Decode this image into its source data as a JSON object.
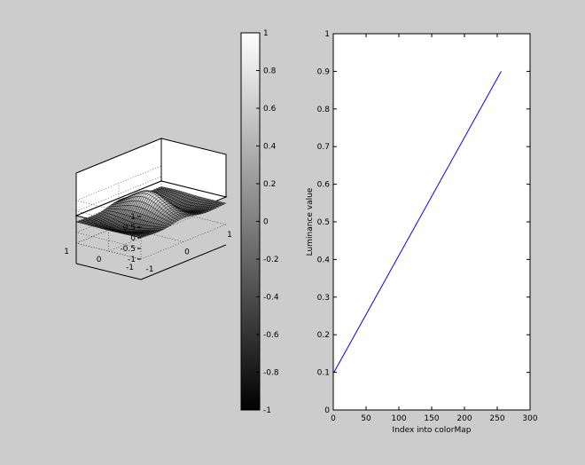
{
  "chart_data": [
    {
      "type": "surface",
      "colormap": "gray",
      "z_ticks": [
        "1",
        "0.5",
        "0",
        "-0.5",
        "-1"
      ],
      "y_ticks": [
        "1",
        "0",
        "-1"
      ],
      "x_ticks": [
        "-1",
        "0",
        "1"
      ],
      "xlim": [
        -1,
        1
      ],
      "ylim": [
        -1,
        1
      ],
      "zlim": [
        -1,
        1
      ],
      "grid": true,
      "colors": {
        "axes_bg": "#ffffff",
        "mesh_line": "#000000"
      }
    },
    {
      "type": "colorbar",
      "colormap": "gray",
      "range": [
        -1,
        1
      ],
      "tick_labels": [
        "1",
        "0.8",
        "0.6",
        "0.4",
        "0.2",
        "0",
        "-0.2",
        "-0.4",
        "-0.6",
        "-0.8",
        "-1"
      ]
    },
    {
      "type": "line",
      "xlabel": "Index into colorMap",
      "ylabel": "Luminance value",
      "xlim": [
        0,
        300
      ],
      "ylim": [
        0,
        1
      ],
      "x_ticks": [
        "0",
        "50",
        "100",
        "150",
        "200",
        "250",
        "300"
      ],
      "y_ticks": [
        "0",
        "0.1",
        "0.2",
        "0.3",
        "0.4",
        "0.5",
        "0.6",
        "0.7",
        "0.8",
        "0.9",
        "1"
      ],
      "grid": false,
      "series": [
        {
          "color": "#0000ff",
          "x": [
            1,
            256
          ],
          "y": [
            0.1,
            0.9
          ]
        }
      ]
    }
  ],
  "colors": {
    "figure_bg": "#cccccc",
    "axes_bg": "#ffffff"
  }
}
